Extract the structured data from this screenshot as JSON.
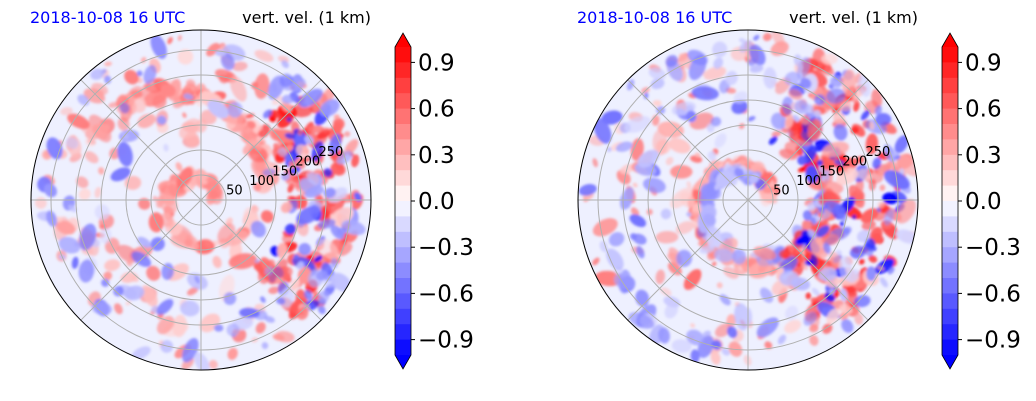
{
  "chart_data": [
    {
      "type": "heatmap",
      "projection": "polar",
      "title_left": "2018-10-08 16 UTC",
      "title_right": "vert. vel. (1 km)",
      "title_left_color": "#0000ff",
      "radial_ticks": [
        "50",
        "100",
        "150",
        "200",
        "250"
      ],
      "radial_tick_values": [
        50,
        100,
        150,
        200,
        250
      ],
      "r_max": 340,
      "radial_grid_values": [
        50,
        100,
        150,
        200,
        250,
        300
      ],
      "angular_grid_deg": [
        0,
        45,
        90,
        135,
        180,
        225,
        270,
        315
      ],
      "grid": true,
      "colorbar": {
        "ticks": [
          "0.9",
          "0.6",
          "0.3",
          "0.0",
          "−0.3",
          "−0.6",
          "−0.9"
        ],
        "tick_values": [
          0.9,
          0.6,
          0.3,
          0.0,
          -0.3,
          -0.6,
          -0.9
        ],
        "vmin": -1.0,
        "vmax": 1.0,
        "extend": "both",
        "colormap": "bwr",
        "levels": 20
      },
      "features": [
        {
          "kind": "spiral_band",
          "sign": 1,
          "rot": 0.0,
          "r0": 130,
          "r1": 250,
          "a0": 0.2,
          "a1": 2.4,
          "density": 90
        },
        {
          "kind": "spiral_band",
          "sign": 1,
          "rot": 0.0,
          "r0": 20,
          "r1": 110,
          "a0": 0.0,
          "a1": 6.0,
          "density": 60
        },
        {
          "kind": "eyewall_cluster",
          "sign": 1,
          "rot": 0.0,
          "r0": 180,
          "r1": 320,
          "a0": -0.9,
          "a1": 0.9,
          "density": 120
        },
        {
          "kind": "eyewall_cluster",
          "sign": -1,
          "rot": 0.0,
          "r0": 180,
          "r1": 320,
          "a0": -0.9,
          "a1": 0.9,
          "density": 40
        },
        {
          "kind": "scatter",
          "sign": 1,
          "rot": 0.0,
          "r0": 60,
          "r1": 330,
          "a0": 0.0,
          "a1": 6.28,
          "density": 160
        },
        {
          "kind": "scatter",
          "sign": -1,
          "rot": 0.0,
          "r0": 80,
          "r1": 330,
          "a0": 0.0,
          "a1": 6.28,
          "density": 110
        }
      ]
    },
    {
      "type": "heatmap",
      "projection": "polar",
      "title_left": "2018-10-08 16 UTC",
      "title_right": "vert. vel. (1 km)",
      "title_left_color": "#0000ff",
      "radial_ticks": [
        "50",
        "100",
        "150",
        "200",
        "250"
      ],
      "radial_tick_values": [
        50,
        100,
        150,
        200,
        250
      ],
      "r_max": 340,
      "radial_grid_values": [
        50,
        100,
        150,
        200,
        250,
        300
      ],
      "angular_grid_deg": [
        0,
        45,
        90,
        135,
        180,
        225,
        270,
        315
      ],
      "grid": true,
      "colorbar": {
        "ticks": [
          "0.9",
          "0.6",
          "0.3",
          "0.0",
          "−0.3",
          "−0.6",
          "−0.9"
        ],
        "tick_values": [
          0.9,
          0.6,
          0.3,
          0.0,
          -0.3,
          -0.6,
          -0.9
        ],
        "vmin": -1.0,
        "vmax": 1.0,
        "extend": "both",
        "colormap": "bwr",
        "levels": 20
      },
      "features": [
        {
          "kind": "spiral_band",
          "sign": 1,
          "rot": 0.3,
          "r0": 40,
          "r1": 170,
          "a0": 0.0,
          "a1": 6.2,
          "density": 140
        },
        {
          "kind": "spiral_band",
          "sign": -1,
          "rot": 1.2,
          "r0": 40,
          "r1": 170,
          "a0": 0.0,
          "a1": 6.2,
          "density": 70
        },
        {
          "kind": "eyewall_cluster",
          "sign": 1,
          "rot": 0.0,
          "r0": 120,
          "r1": 320,
          "a0": -1.1,
          "a1": 1.2,
          "density": 140
        },
        {
          "kind": "eyewall_cluster",
          "sign": -1,
          "rot": 0.0,
          "r0": 120,
          "r1": 320,
          "a0": -1.1,
          "a1": 1.2,
          "density": 60
        },
        {
          "kind": "scatter",
          "sign": 1,
          "rot": 0.0,
          "r0": 80,
          "r1": 330,
          "a0": 0.0,
          "a1": 6.28,
          "density": 150
        },
        {
          "kind": "scatter",
          "sign": -1,
          "rot": 0.0,
          "r0": 80,
          "r1": 330,
          "a0": 0.0,
          "a1": 6.28,
          "density": 130
        }
      ]
    }
  ]
}
